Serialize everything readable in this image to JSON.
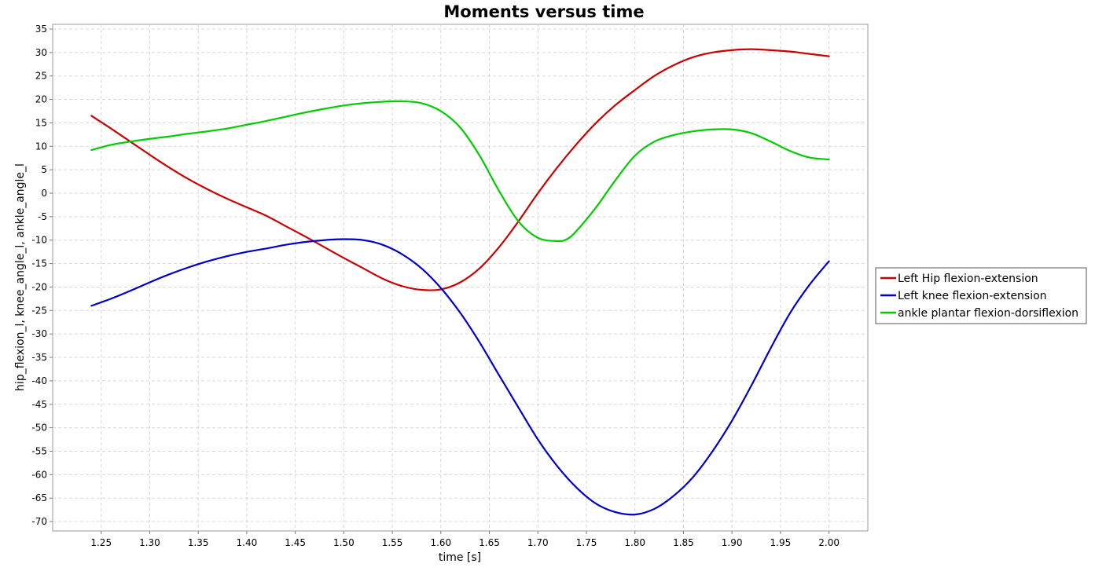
{
  "chart_data": {
    "type": "line",
    "title": "Moments versus time",
    "xlabel": "time [s]",
    "ylabel": "hip_flexion_l, knee_angle_l, ankle_angle_l",
    "xlim": [
      1.2,
      2.04
    ],
    "ylim": [
      -72,
      36
    ],
    "x_ticks": [
      1.25,
      1.3,
      1.35,
      1.4,
      1.45,
      1.5,
      1.55,
      1.6,
      1.65,
      1.7,
      1.75,
      1.8,
      1.85,
      1.9,
      1.95,
      2.0
    ],
    "y_ticks": [
      35,
      30,
      25,
      20,
      15,
      10,
      5,
      0,
      -5,
      -10,
      -15,
      -20,
      -25,
      -30,
      -35,
      -40,
      -45,
      -50,
      -55,
      -60,
      -65,
      -70
    ],
    "grid": true,
    "legend_position": "right",
    "series": [
      {
        "name": "Left Hip flexion-extension",
        "color": "#cc0000",
        "x": [
          1.24,
          1.26,
          1.28,
          1.3,
          1.32,
          1.34,
          1.36,
          1.38,
          1.4,
          1.42,
          1.44,
          1.46,
          1.48,
          1.5,
          1.52,
          1.54,
          1.56,
          1.58,
          1.6,
          1.62,
          1.64,
          1.66,
          1.68,
          1.7,
          1.72,
          1.74,
          1.76,
          1.78,
          1.8,
          1.82,
          1.84,
          1.86,
          1.88,
          1.9,
          1.92,
          1.94,
          1.96,
          1.98,
          2.0
        ],
        "y": [
          16.5,
          13.8,
          11.0,
          8.2,
          5.5,
          3.0,
          0.8,
          -1.2,
          -3.0,
          -4.8,
          -7.0,
          -9.2,
          -11.5,
          -13.8,
          -16.0,
          -18.2,
          -19.8,
          -20.6,
          -20.5,
          -19.0,
          -16.0,
          -11.5,
          -6.0,
          0.0,
          5.5,
          10.5,
          15.0,
          18.8,
          22.0,
          25.0,
          27.3,
          29.0,
          30.0,
          30.5,
          30.7,
          30.5,
          30.2,
          29.7,
          29.2
        ]
      },
      {
        "name": "Left knee flexion-extension",
        "color": "#0000cc",
        "x": [
          1.24,
          1.26,
          1.28,
          1.3,
          1.32,
          1.34,
          1.36,
          1.38,
          1.4,
          1.42,
          1.44,
          1.46,
          1.48,
          1.5,
          1.52,
          1.54,
          1.56,
          1.58,
          1.6,
          1.62,
          1.64,
          1.66,
          1.68,
          1.7,
          1.72,
          1.74,
          1.76,
          1.78,
          1.8,
          1.82,
          1.84,
          1.86,
          1.88,
          1.9,
          1.92,
          1.94,
          1.96,
          1.98,
          2.0
        ],
        "y": [
          -24.0,
          -22.5,
          -20.8,
          -19.0,
          -17.3,
          -15.8,
          -14.5,
          -13.4,
          -12.5,
          -11.8,
          -11.0,
          -10.4,
          -10.0,
          -9.8,
          -10.0,
          -11.0,
          -13.0,
          -16.0,
          -20.2,
          -25.5,
          -31.8,
          -38.8,
          -45.7,
          -52.5,
          -58.2,
          -62.8,
          -66.2,
          -68.0,
          -68.5,
          -67.3,
          -64.5,
          -60.5,
          -55.0,
          -48.5,
          -41.0,
          -33.0,
          -25.5,
          -19.5,
          -14.5
        ]
      },
      {
        "name": "ankle plantar flexion-dorsiflexion",
        "color": "#00cc00",
        "x": [
          1.24,
          1.26,
          1.28,
          1.3,
          1.32,
          1.34,
          1.36,
          1.38,
          1.4,
          1.42,
          1.44,
          1.46,
          1.48,
          1.5,
          1.52,
          1.54,
          1.56,
          1.58,
          1.6,
          1.62,
          1.64,
          1.66,
          1.68,
          1.7,
          1.72,
          1.73,
          1.74,
          1.76,
          1.78,
          1.8,
          1.82,
          1.84,
          1.86,
          1.88,
          1.9,
          1.92,
          1.94,
          1.96,
          1.98,
          2.0
        ],
        "y": [
          9.2,
          10.3,
          11.0,
          11.6,
          12.1,
          12.7,
          13.2,
          13.8,
          14.6,
          15.4,
          16.3,
          17.2,
          18.0,
          18.7,
          19.2,
          19.5,
          19.6,
          19.2,
          17.5,
          14.0,
          8.0,
          0.5,
          -6.0,
          -9.5,
          -10.2,
          -9.8,
          -8.0,
          -3.0,
          2.8,
          8.0,
          11.0,
          12.4,
          13.2,
          13.6,
          13.6,
          12.8,
          11.0,
          9.0,
          7.6,
          7.2
        ]
      }
    ]
  }
}
